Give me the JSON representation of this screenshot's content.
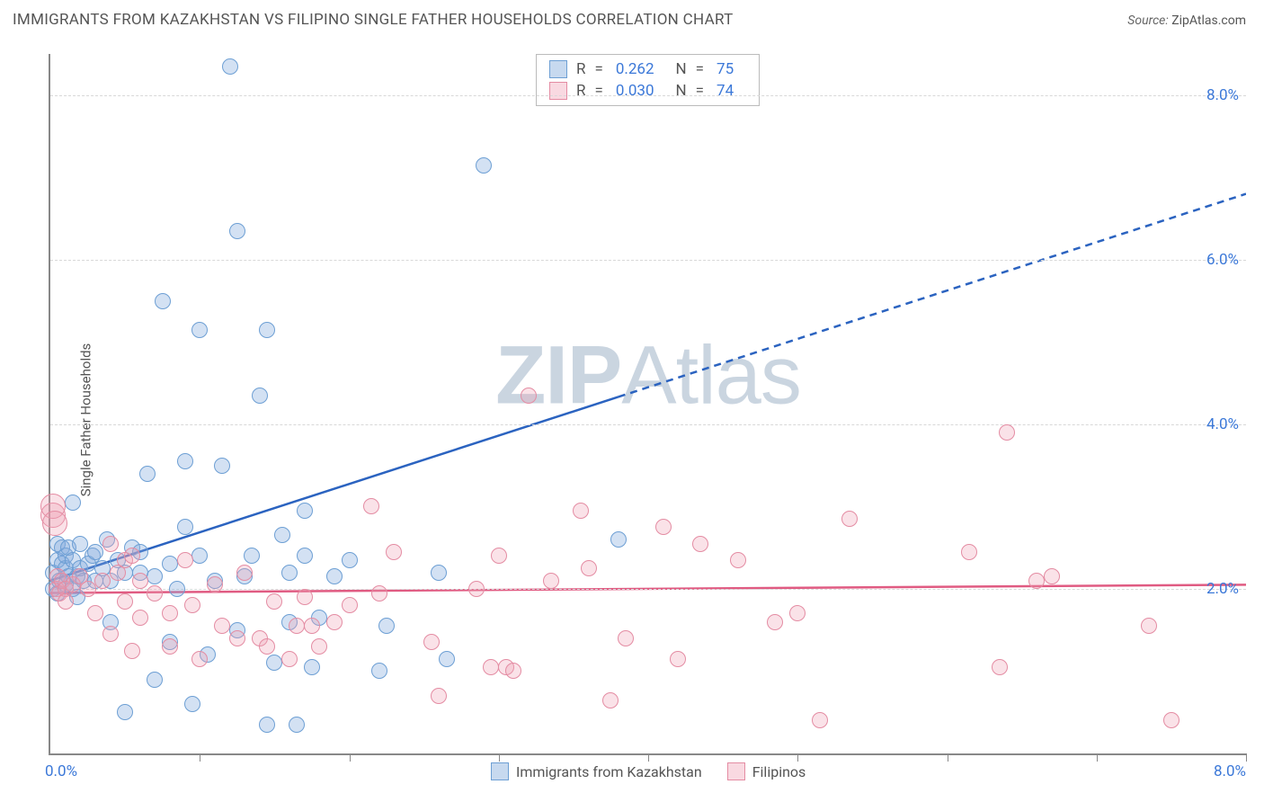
{
  "title": "IMMIGRANTS FROM KAZAKHSTAN VS FILIPINO SINGLE FATHER HOUSEHOLDS CORRELATION CHART",
  "source_label": "Source:",
  "source_value": "ZipAtlas.com",
  "ylabel": "Single Father Households",
  "watermark_bold": "ZIP",
  "watermark_rest": "Atlas",
  "chart": {
    "type": "scatter",
    "xlim": [
      0.0,
      8.0
    ],
    "ylim": [
      0.0,
      8.5
    ],
    "xtick_min": "0.0%",
    "xtick_max": "8.0%",
    "xtick_positions": [
      0,
      1,
      2,
      3,
      4,
      5,
      6,
      7,
      8
    ],
    "yticks": [
      {
        "v": 2.0,
        "label": "2.0%"
      },
      {
        "v": 4.0,
        "label": "4.0%"
      },
      {
        "v": 6.0,
        "label": "6.0%"
      },
      {
        "v": 8.0,
        "label": "8.0%"
      }
    ],
    "background_color": "#ffffff",
    "grid_color": "#d8d8d8",
    "axis_color": "#888888",
    "marker_radius": 9,
    "series": [
      {
        "key": "kazakhstan",
        "label": "Immigrants from Kazakhstan",
        "color_fill": "rgba(130,170,220,0.35)",
        "color_stroke": "#6d9fd4",
        "r_value": "0.262",
        "n_value": "75",
        "trend": {
          "x1": 0.0,
          "y1": 2.1,
          "x2": 8.0,
          "y2": 6.8,
          "solid_until_x": 3.8,
          "color": "#2b63c0",
          "width": 2.5
        },
        "points": [
          [
            0.02,
            2.0
          ],
          [
            0.02,
            2.2
          ],
          [
            0.05,
            1.95
          ],
          [
            0.05,
            2.35
          ],
          [
            0.05,
            2.55
          ],
          [
            0.06,
            2.1
          ],
          [
            0.08,
            2.3
          ],
          [
            0.08,
            2.5
          ],
          [
            0.1,
            2.05
          ],
          [
            0.1,
            2.25
          ],
          [
            0.1,
            2.4
          ],
          [
            0.12,
            2.15
          ],
          [
            0.12,
            2.5
          ],
          [
            0.15,
            2.35
          ],
          [
            0.15,
            2.0
          ],
          [
            0.15,
            3.05
          ],
          [
            0.18,
            1.9
          ],
          [
            0.18,
            2.15
          ],
          [
            0.2,
            2.25
          ],
          [
            0.2,
            2.55
          ],
          [
            0.22,
            2.1
          ],
          [
            0.25,
            2.3
          ],
          [
            0.28,
            2.4
          ],
          [
            0.3,
            2.1
          ],
          [
            0.3,
            2.45
          ],
          [
            0.35,
            2.25
          ],
          [
            0.38,
            2.6
          ],
          [
            0.4,
            1.6
          ],
          [
            0.4,
            2.1
          ],
          [
            0.45,
            2.35
          ],
          [
            0.5,
            2.2
          ],
          [
            0.5,
            0.5
          ],
          [
            0.55,
            2.5
          ],
          [
            0.6,
            2.2
          ],
          [
            0.6,
            2.45
          ],
          [
            0.65,
            3.4
          ],
          [
            0.7,
            0.9
          ],
          [
            0.7,
            2.15
          ],
          [
            0.75,
            5.5
          ],
          [
            0.8,
            1.35
          ],
          [
            0.8,
            2.3
          ],
          [
            0.85,
            2.0
          ],
          [
            0.9,
            2.75
          ],
          [
            0.9,
            3.55
          ],
          [
            0.95,
            0.6
          ],
          [
            1.0,
            2.4
          ],
          [
            1.0,
            5.15
          ],
          [
            1.05,
            1.2
          ],
          [
            1.1,
            2.1
          ],
          [
            1.15,
            3.5
          ],
          [
            1.2,
            8.35
          ],
          [
            1.25,
            6.35
          ],
          [
            1.25,
            1.5
          ],
          [
            1.3,
            2.15
          ],
          [
            1.35,
            2.4
          ],
          [
            1.4,
            4.35
          ],
          [
            1.45,
            0.35
          ],
          [
            1.45,
            5.15
          ],
          [
            1.5,
            1.1
          ],
          [
            1.55,
            2.65
          ],
          [
            1.6,
            1.6
          ],
          [
            1.6,
            2.2
          ],
          [
            1.65,
            0.35
          ],
          [
            1.7,
            2.4
          ],
          [
            1.7,
            2.95
          ],
          [
            1.75,
            1.05
          ],
          [
            1.8,
            1.65
          ],
          [
            1.9,
            2.15
          ],
          [
            2.0,
            2.35
          ],
          [
            2.2,
            1.0
          ],
          [
            2.25,
            1.55
          ],
          [
            2.6,
            2.2
          ],
          [
            2.65,
            1.15
          ],
          [
            2.9,
            7.15
          ],
          [
            3.8,
            2.6
          ]
        ]
      },
      {
        "key": "filipinos",
        "label": "Filipinos",
        "color_fill": "rgba(240,160,180,0.30)",
        "color_stroke": "#e48ca3",
        "r_value": "0.030",
        "n_value": "74",
        "trend": {
          "x1": 0.0,
          "y1": 1.95,
          "x2": 8.0,
          "y2": 2.05,
          "solid_until_x": 8.0,
          "color": "#e05b82",
          "width": 2.5
        },
        "points": [
          [
            0.02,
            2.9
          ],
          [
            0.02,
            3.0
          ],
          [
            0.03,
            2.8
          ],
          [
            0.04,
            2.0
          ],
          [
            0.05,
            2.15
          ],
          [
            0.06,
            1.95
          ],
          [
            0.08,
            2.1
          ],
          [
            0.1,
            2.0
          ],
          [
            0.1,
            1.85
          ],
          [
            0.15,
            2.05
          ],
          [
            0.2,
            2.15
          ],
          [
            0.25,
            2.0
          ],
          [
            0.3,
            1.7
          ],
          [
            0.35,
            2.1
          ],
          [
            0.4,
            1.45
          ],
          [
            0.4,
            2.55
          ],
          [
            0.45,
            2.2
          ],
          [
            0.5,
            1.85
          ],
          [
            0.5,
            2.35
          ],
          [
            0.55,
            1.25
          ],
          [
            0.55,
            2.4
          ],
          [
            0.6,
            1.65
          ],
          [
            0.6,
            2.1
          ],
          [
            0.7,
            1.95
          ],
          [
            0.8,
            1.7
          ],
          [
            0.8,
            1.3
          ],
          [
            0.9,
            2.35
          ],
          [
            0.95,
            1.8
          ],
          [
            1.0,
            1.15
          ],
          [
            1.1,
            2.05
          ],
          [
            1.15,
            1.55
          ],
          [
            1.25,
            1.4
          ],
          [
            1.3,
            2.2
          ],
          [
            1.4,
            1.4
          ],
          [
            1.45,
            1.3
          ],
          [
            1.5,
            1.85
          ],
          [
            1.6,
            1.15
          ],
          [
            1.65,
            1.55
          ],
          [
            1.7,
            1.9
          ],
          [
            1.75,
            1.55
          ],
          [
            1.8,
            1.3
          ],
          [
            1.9,
            1.6
          ],
          [
            2.0,
            1.8
          ],
          [
            2.15,
            3.0
          ],
          [
            2.2,
            1.95
          ],
          [
            2.3,
            2.45
          ],
          [
            2.55,
            1.35
          ],
          [
            2.6,
            0.7
          ],
          [
            2.85,
            2.0
          ],
          [
            2.95,
            1.05
          ],
          [
            3.0,
            2.4
          ],
          [
            3.05,
            1.05
          ],
          [
            3.1,
            1.0
          ],
          [
            3.2,
            4.35
          ],
          [
            3.35,
            2.1
          ],
          [
            3.55,
            2.95
          ],
          [
            3.6,
            2.25
          ],
          [
            3.75,
            0.65
          ],
          [
            3.85,
            1.4
          ],
          [
            4.1,
            2.75
          ],
          [
            4.2,
            1.15
          ],
          [
            4.35,
            2.55
          ],
          [
            4.6,
            2.35
          ],
          [
            4.85,
            1.6
          ],
          [
            5.0,
            1.7
          ],
          [
            5.15,
            0.4
          ],
          [
            5.35,
            2.85
          ],
          [
            6.15,
            2.45
          ],
          [
            6.35,
            1.05
          ],
          [
            6.4,
            3.9
          ],
          [
            6.6,
            2.1
          ],
          [
            6.7,
            2.15
          ],
          [
            7.35,
            1.55
          ],
          [
            7.5,
            0.4
          ]
        ]
      }
    ]
  },
  "legend_top": {
    "r_label": "R",
    "n_label": "N",
    "eq": "="
  },
  "legend_bottom_labels": [
    "Immigrants from Kazakhstan",
    "Filipinos"
  ]
}
